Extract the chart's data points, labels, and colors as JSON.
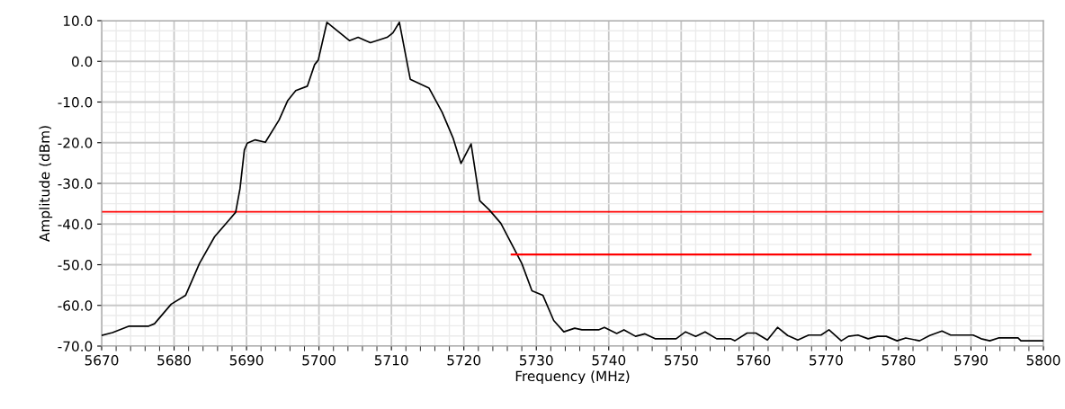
{
  "chart_data": {
    "type": "line",
    "xlabel": "Frequency (MHz)",
    "ylabel": "Amplitude (dBm)",
    "xlim": [
      5670,
      5800
    ],
    "xticks": [
      5670,
      5680,
      5690,
      5700,
      5710,
      5720,
      5730,
      5740,
      5750,
      5760,
      5770,
      5780,
      5790,
      5800
    ],
    "ylim": [
      -70,
      10
    ],
    "yticks": [
      {
        "value": -70,
        "label": "-70.0"
      },
      {
        "value": -60,
        "label": "-60.0"
      },
      {
        "value": -50,
        "label": "-50.0"
      },
      {
        "value": -40,
        "label": "-40.0"
      },
      {
        "value": -30,
        "label": "-30.0"
      },
      {
        "value": -20,
        "label": "-20.0"
      },
      {
        "value": -10,
        "label": "-10.0"
      },
      {
        "value": 0,
        "label": "0.0"
      },
      {
        "value": 10,
        "label": "10.0"
      }
    ],
    "grid": true,
    "marker": "none",
    "line_style": "solid",
    "series": [
      {
        "color": "#000000",
        "x": [
          5670,
          5671.5,
          5673.8,
          5676.5,
          5677.3,
          5679.6,
          5681.6,
          5683.5,
          5685.6,
          5687.4,
          5688.5,
          5689.1,
          5689.7,
          5690.1,
          5691.2,
          5692.6,
          5694.5,
          5695.7,
          5696.8,
          5698.4,
          5699.4,
          5699.9,
          5701.1,
          5704.2,
          5705.4,
          5707.1,
          5709.4,
          5710.2,
          5711.1,
          5712.6,
          5715.2,
          5717.0,
          5718.5,
          5719.6,
          5721.0,
          5722.2,
          5723.5,
          5725.1,
          5728.0,
          5729.4,
          5730.9,
          5732.4,
          5733.8,
          5735.3,
          5736.3,
          5738.6,
          5739.4,
          5741.1,
          5742.1,
          5743.7,
          5745.0,
          5746.4,
          5749.3,
          5750.6,
          5752.0,
          5753.3,
          5754.9,
          5756.8,
          5757.4,
          5759.1,
          5760.3,
          5761.9,
          5763.3,
          5764.7,
          5766.1,
          5767.6,
          5769.3,
          5770.4,
          5772.1,
          5773.1,
          5774.4,
          5775.8,
          5777.1,
          5778.3,
          5779.8,
          5781.0,
          5782.9,
          5784.3,
          5786.0,
          5787.2,
          5790.3,
          5791.4,
          5792.6,
          5793.8,
          5796.5,
          5796.9,
          5800
        ],
        "values": [
          -67.4,
          -66.7,
          -65.1,
          -65.1,
          -64.5,
          -59.7,
          -57.5,
          -49.7,
          -43.1,
          -39.4,
          -37.1,
          -31.3,
          -21.8,
          -20.1,
          -19.3,
          -19.9,
          -14.4,
          -9.6,
          -7.2,
          -6.1,
          -0.8,
          0.3,
          9.6,
          5.1,
          5.9,
          4.6,
          5.9,
          7.0,
          9.6,
          -4.4,
          -6.6,
          -12.5,
          -18.8,
          -25.1,
          -20.3,
          -34.3,
          -36.5,
          -39.8,
          -49.7,
          -56.4,
          -57.5,
          -63.7,
          -66.5,
          -65.6,
          -66.0,
          -66.0,
          -65.4,
          -66.9,
          -66.0,
          -67.6,
          -67.0,
          -68.2,
          -68.2,
          -66.5,
          -67.6,
          -66.5,
          -68.2,
          -68.2,
          -68.7,
          -66.8,
          -66.8,
          -68.5,
          -65.4,
          -67.4,
          -68.5,
          -67.3,
          -67.3,
          -66.0,
          -68.7,
          -67.6,
          -67.3,
          -68.2,
          -67.6,
          -67.6,
          -68.7,
          -68.0,
          -68.7,
          -67.4,
          -66.3,
          -67.3,
          -67.3,
          -68.2,
          -68.7,
          -68.0,
          -68.0,
          -68.7,
          -68.7
        ]
      },
      {
        "color": "#ff0000",
        "x": [
          5726.6,
          5798.2
        ],
        "values": [
          -47.5,
          -47.5
        ]
      }
    ],
    "ref_lines": [
      {
        "axis": "y",
        "value": -37,
        "color": "#ff0000",
        "line_style": "solid"
      }
    ]
  }
}
